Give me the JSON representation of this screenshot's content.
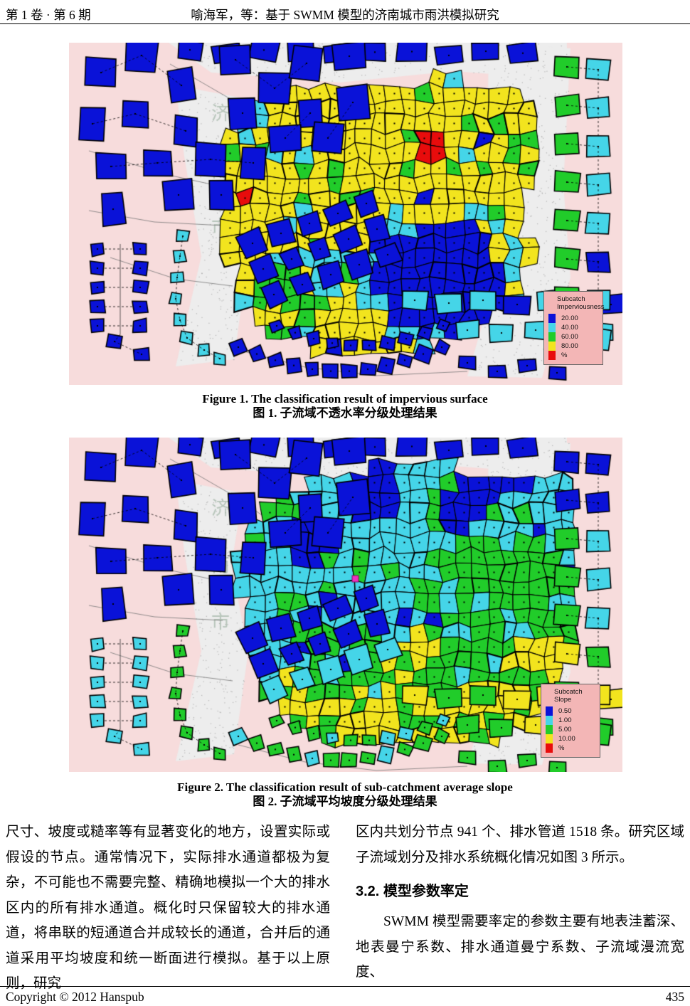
{
  "header": {
    "issue": "第 1 卷 · 第 6 期",
    "title": "喻海军，等：基于 SWMM 模型的济南城市雨洪模拟研究"
  },
  "figure1": {
    "caption_en": "Figure 1. The classification result of impervious surface",
    "caption_zh": "图 1.  子流域不透水率分级处理结果",
    "legend": {
      "title1": "Subcatch",
      "title2": "Imperviousness",
      "items": [
        {
          "label": "20.00",
          "color": "#0a12d8"
        },
        {
          "label": "40.00",
          "color": "#45d5e8"
        },
        {
          "label": "60.00",
          "color": "#21cc2a"
        },
        {
          "label": "80.00",
          "color": "#f2e41e"
        },
        {
          "label": "%",
          "color": "#e80c0c"
        }
      ]
    },
    "map": {
      "id": 1,
      "seed": 7,
      "watermark": [
        "济",
        "南",
        "市"
      ],
      "palette": {
        "blue": "#0a12d8",
        "cyan": "#45d5e8",
        "green": "#21cc2a",
        "yellow": "#f2e41e",
        "red": "#e80c0c",
        "bg": "#f7dcdc",
        "road": "#ededed",
        "speckle": "#b4b4b4",
        "watermark_color": "rgba(140,165,145,0.55)"
      }
    }
  },
  "figure2": {
    "caption_en": "Figure 2. The classification result of sub-catchment average slope",
    "caption_zh": "图 2.  子流域平均坡度分级处理结果",
    "legend": {
      "title1": "Subcatch",
      "title2": "Slope",
      "items": [
        {
          "label": "0.50",
          "color": "#0a12d8"
        },
        {
          "label": "1.00",
          "color": "#45d5e8"
        },
        {
          "label": "5.00",
          "color": "#21cc2a"
        },
        {
          "label": "10.00",
          "color": "#f2e41e"
        },
        {
          "label": "%",
          "color": "#e80c0c"
        }
      ]
    },
    "map": {
      "id": 2,
      "seed": 11,
      "marker": "#f030c0",
      "watermark": [
        "济",
        "南",
        "市"
      ],
      "palette": {
        "blue": "#0a12d8",
        "cyan": "#45d5e8",
        "green": "#21cc2a",
        "yellow": "#f2e41e",
        "red": "#e80c0c",
        "bg": "#f7dcdc",
        "road": "#ededed",
        "speckle": "#b4b4b4",
        "watermark_color": "rgba(140,165,145,0.55)"
      }
    }
  },
  "body": {
    "left_col": "尺寸、坡度或糙率等有显著变化的地方，设置实际或假设的节点。通常情况下，实际排水通道都极为复杂，不可能也不需要完整、精确地模拟一个大的排水区内的所有排水通道。概化时只保留较大的排水通道，将串联的短通道合并成较长的通道，合并后的通道采用平均坡度和统一断面进行模拟。基于以上原则，研究",
    "right_col_p1": "区内共划分节点 941 个、排水管道 1518 条。研究区域子流域划分及排水系统概化情况如图 3 所示。",
    "section_heading": "3.2.  模型参数率定",
    "right_col_p2": "SWMM 模型需要率定的参数主要有地表洼蓄深、地表曼宁系数、排水通道曼宁系数、子流域漫流宽度、"
  },
  "footer": {
    "copyright": "Copyright © 2012 Hanspub",
    "page": "435"
  }
}
